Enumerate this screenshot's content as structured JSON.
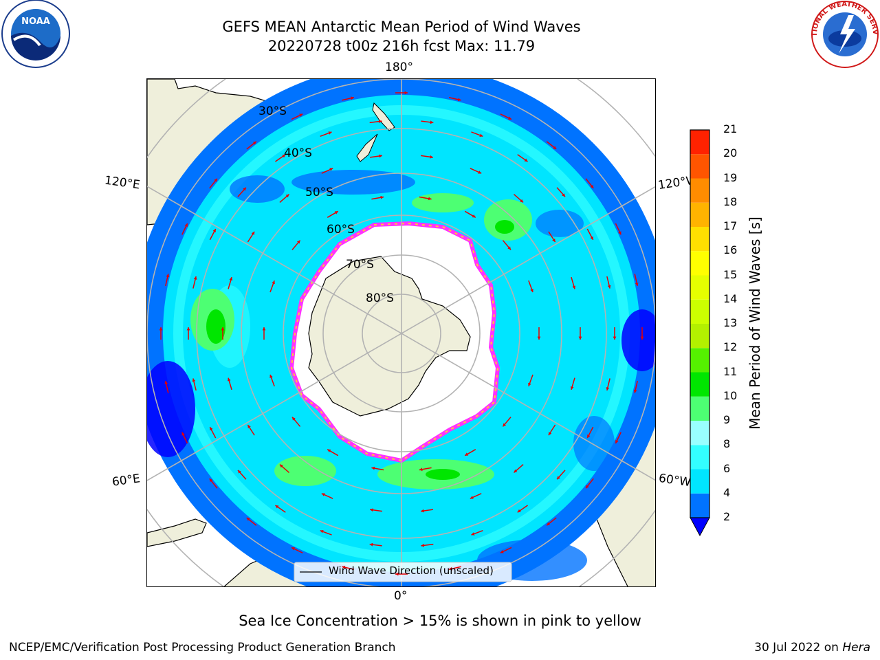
{
  "header": {
    "title_line1": "GEFS MEAN Antarctic Mean Period of Wind Waves",
    "title_line2": "20220728 t00z 216h fcst   Max: 11.79",
    "noaa_logo_text": "NOAA",
    "nws_logo_text": "NATIONAL WEATHER SERVICE"
  },
  "map": {
    "projection": "south-polar-stereographic",
    "longitude_labels": {
      "top": "180°",
      "bottom": "0°",
      "left_upper": "120°E",
      "left_lower": "60°E",
      "right_upper": "120°W",
      "right_lower": "60°W"
    },
    "latitude_labels": [
      "30°S",
      "40°S",
      "50°S",
      "60°S",
      "70°S",
      "80°S"
    ],
    "legend_label": "Wind Wave Direction (unscaled)",
    "arrow_color": "#e60000",
    "land_color": "#efefdb",
    "ice_edge_colors": [
      "#ff33ff",
      "#ff9900",
      "#ffcc33"
    ]
  },
  "colorbar": {
    "title": "Mean Period of Wind Waves [s]",
    "ticks": [
      "2",
      "4",
      "6",
      "8",
      "9",
      "10",
      "11",
      "12",
      "13",
      "14",
      "15",
      "16",
      "17",
      "18",
      "19",
      "20",
      "21"
    ],
    "colors": [
      "#0073ff",
      "#00e5ff",
      "#33ffff",
      "#99ffff",
      "#4dff73",
      "#00e600",
      "#55f000",
      "#b3f000",
      "#ccff00",
      "#e6ff00",
      "#ffff00",
      "#ffe000",
      "#ffb300",
      "#ff8c00",
      "#ff5500",
      "#ff2200"
    ],
    "under_color": "#0000ff"
  },
  "footer": {
    "caption": "Sea Ice Concentration > 15% is shown in pink to yellow",
    "credit": "NCEP/EMC/Verification Post Processing Product Generation Branch",
    "date_text": "30 Jul 2022 on ",
    "machine": "Hera"
  }
}
